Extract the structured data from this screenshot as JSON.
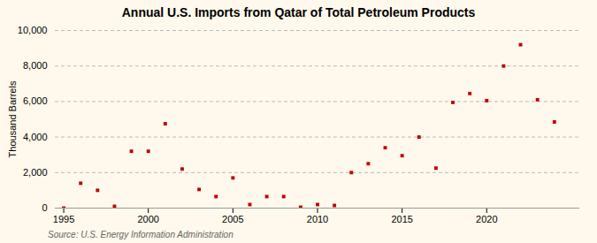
{
  "chart_data": {
    "type": "scatter",
    "title": "Annual U.S. Imports from Qatar of Total Petroleum Products",
    "ylabel": "Thousand Barrels",
    "source": "Source: U.S. Energy Information Administration",
    "x": [
      1995,
      1996,
      1997,
      1998,
      1999,
      2000,
      2001,
      2002,
      2003,
      2004,
      2005,
      2006,
      2007,
      2008,
      2009,
      2010,
      2011,
      2012,
      2013,
      2014,
      2015,
      2016,
      2017,
      2018,
      2019,
      2020,
      2021,
      2022,
      2023,
      2024
    ],
    "values": [
      0,
      1400,
      1000,
      100,
      3200,
      3200,
      4750,
      2200,
      1050,
      650,
      1700,
      200,
      650,
      650,
      50,
      200,
      150,
      2000,
      2500,
      3400,
      2950,
      4000,
      2250,
      5950,
      6450,
      6050,
      8000,
      9200,
      6100,
      4850
    ],
    "color": "#c00000",
    "marker": "square",
    "xlim": [
      1994.5,
      2025.5
    ],
    "ylim": [
      0,
      10000
    ],
    "xticks": [
      1995,
      2000,
      2005,
      2010,
      2015,
      2020
    ],
    "yticks": [
      0,
      {
        "value": 2000,
        "label": "2,000"
      },
      {
        "value": 4000,
        "label": "4,000"
      },
      {
        "value": 6000,
        "label": "6,000"
      },
      {
        "value": 8000,
        "label": "8,000"
      },
      {
        "value": 10000,
        "label": "10,000"
      }
    ],
    "grid": true
  }
}
